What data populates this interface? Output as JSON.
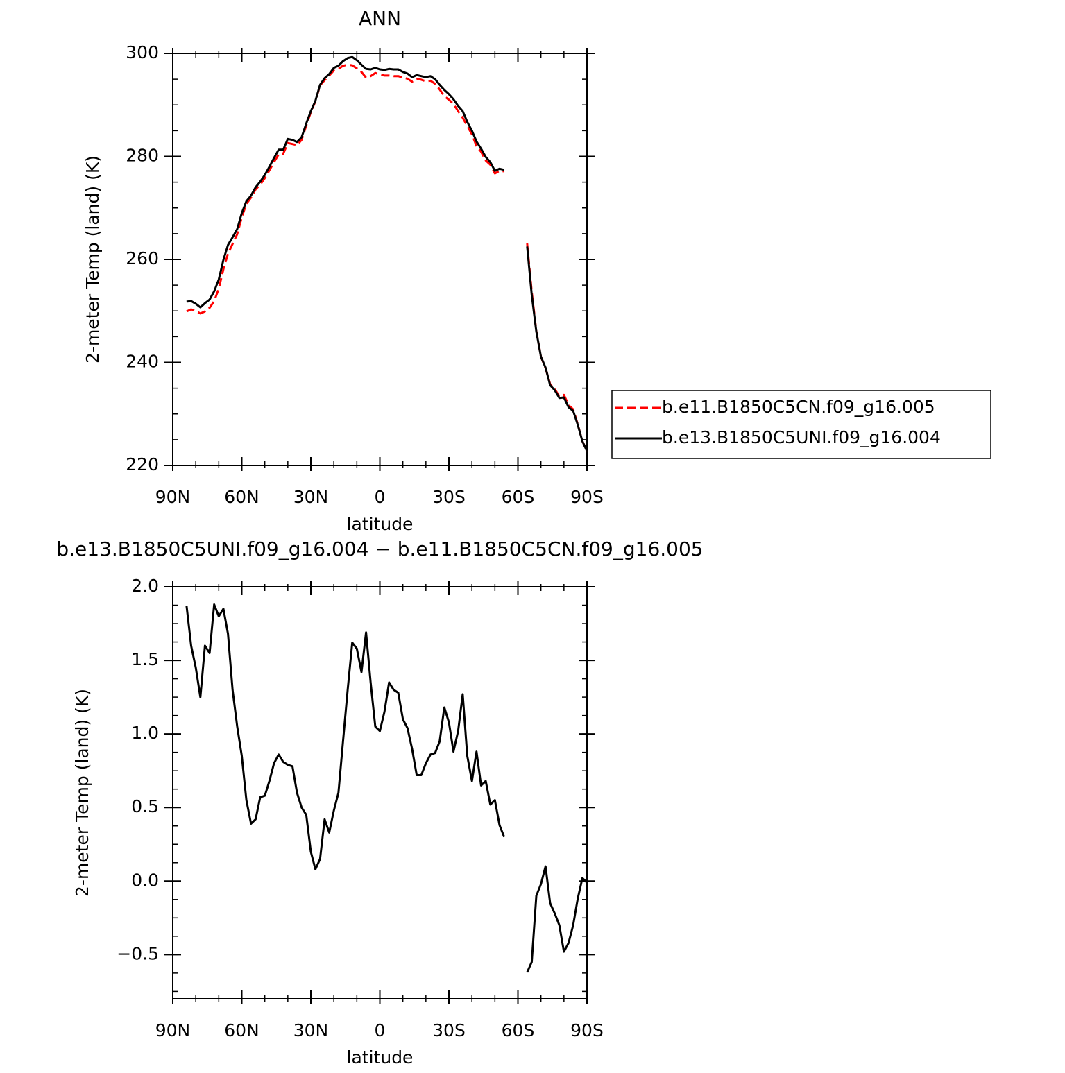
{
  "chart_data": [
    {
      "type": "line",
      "title": "ANN",
      "xlabel": "latitude",
      "ylabel": "2-meter Temp (land) (K)",
      "x": [
        84,
        82,
        80,
        78,
        76,
        74,
        72,
        70,
        68,
        66,
        64,
        62,
        60,
        58,
        56,
        54,
        52,
        50,
        48,
        46,
        44,
        42,
        40,
        38,
        36,
        34,
        32,
        30,
        28,
        26,
        24,
        22,
        20,
        18,
        16,
        14,
        12,
        10,
        8,
        6,
        4,
        2,
        0,
        -2,
        -4,
        -6,
        -8,
        -10,
        -12,
        -14,
        -16,
        -18,
        -20,
        -22,
        -24,
        -26,
        -28,
        -30,
        -32,
        -34,
        -36,
        -38,
        -40,
        -42,
        -44,
        -46,
        -48,
        -50,
        -52,
        -54,
        -58,
        -64,
        -66,
        -68,
        -70,
        -72,
        -74,
        -76,
        -78,
        -80,
        -82,
        -84,
        -86,
        -88,
        -90
      ],
      "series": [
        {
          "name": "b.e11.B1850C5CN.f09_g16.005",
          "color": "#ff0000",
          "dashed": true,
          "values": [
            249.9,
            250.3,
            250.0,
            249.5,
            249.9,
            250.6,
            251.9,
            254.3,
            258.1,
            261.1,
            263.0,
            264.9,
            268.2,
            270.8,
            272.0,
            273.6,
            274.5,
            275.8,
            277.3,
            278.9,
            280.4,
            280.5,
            282.6,
            282.4,
            282.2,
            283.2,
            286.0,
            288.6,
            290.7,
            293.8,
            294.8,
            295.7,
            296.7,
            297.0,
            297.6,
            297.8,
            297.7,
            297.1,
            296.4,
            295.3,
            295.6,
            296.2,
            295.9,
            295.7,
            295.7,
            295.6,
            295.6,
            295.3,
            295.1,
            294.5,
            295.1,
            294.9,
            294.6,
            294.7,
            294.1,
            293.0,
            291.7,
            291.0,
            290.2,
            288.8,
            287.5,
            285.9,
            284.3,
            282.0,
            280.9,
            279.2,
            278.4,
            276.7,
            277.2,
            277.1,
            null,
            263.1,
            253.7,
            246.1,
            241.1,
            238.9,
            235.8,
            234.8,
            233.4,
            233.7,
            231.7,
            230.9,
            228.0,
            224.7,
            222.8
          ]
        },
        {
          "name": "b.e13.B1850C5UNI.f09_g16.004",
          "color": "#000000",
          "dashed": false,
          "values": [
            251.8,
            251.9,
            251.4,
            250.7,
            251.5,
            252.2,
            253.8,
            256.1,
            259.9,
            262.8,
            264.3,
            265.9,
            269.0,
            271.3,
            272.4,
            274.0,
            275.1,
            276.4,
            278.0,
            279.7,
            281.3,
            281.3,
            283.4,
            283.2,
            282.8,
            283.7,
            286.4,
            288.8,
            290.8,
            293.9,
            295.2,
            296.0,
            297.2,
            297.6,
            298.5,
            299.1,
            299.3,
            298.7,
            297.8,
            297.0,
            296.9,
            297.2,
            296.9,
            296.8,
            297.0,
            296.9,
            296.9,
            296.4,
            296.1,
            295.4,
            295.8,
            295.6,
            295.4,
            295.6,
            295.0,
            293.9,
            292.9,
            292.1,
            291.1,
            289.8,
            288.8,
            286.7,
            285.0,
            282.9,
            281.5,
            279.9,
            278.9,
            277.2,
            277.6,
            277.4,
            null,
            262.5,
            253.1,
            246.0,
            241.1,
            239.0,
            235.6,
            234.6,
            233.1,
            233.2,
            231.3,
            230.6,
            227.9,
            224.7,
            222.8
          ]
        }
      ],
      "xlim": [
        90,
        -90
      ],
      "xticks": [
        {
          "value": 90,
          "label": "90N"
        },
        {
          "value": 60,
          "label": "60N"
        },
        {
          "value": 30,
          "label": "30N"
        },
        0,
        {
          "value": -30,
          "label": "30S"
        },
        {
          "value": -60,
          "label": "60S"
        },
        {
          "value": -90,
          "label": "90S"
        }
      ],
      "ylim": [
        220,
        300
      ],
      "yticks": [
        220,
        240,
        260,
        280,
        300
      ],
      "legend": "right"
    },
    {
      "type": "line",
      "title": "b.e13.B1850C5UNI.f09_g16.004 − b.e11.B1850C5CN.f09_g16.005",
      "xlabel": "latitude",
      "ylabel": "2-meter Temp (land) (K)",
      "x": [
        84,
        82,
        80,
        78,
        76,
        74,
        72,
        70,
        68,
        66,
        64,
        62,
        60,
        58,
        56,
        54,
        52,
        50,
        48,
        46,
        44,
        42,
        40,
        38,
        36,
        34,
        32,
        30,
        28,
        26,
        24,
        22,
        20,
        18,
        16,
        14,
        12,
        10,
        8,
        6,
        4,
        2,
        0,
        -2,
        -4,
        -6,
        -8,
        -10,
        -12,
        -14,
        -16,
        -18,
        -20,
        -22,
        -24,
        -26,
        -28,
        -30,
        -32,
        -34,
        -36,
        -38,
        -40,
        -42,
        -44,
        -46,
        -48,
        -50,
        -52,
        -54,
        -58,
        -64,
        -66,
        -68,
        -70,
        -72,
        -74,
        -76,
        -78,
        -80,
        -82,
        -84,
        -86,
        -88,
        -90
      ],
      "series": [
        {
          "color": "#000000",
          "dashed": false,
          "values": [
            1.87,
            1.6,
            1.45,
            1.25,
            1.6,
            1.55,
            1.88,
            1.8,
            1.85,
            1.68,
            1.3,
            1.05,
            0.85,
            0.55,
            0.39,
            0.42,
            0.57,
            0.58,
            0.68,
            0.8,
            0.86,
            0.81,
            0.79,
            0.78,
            0.6,
            0.5,
            0.45,
            0.2,
            0.08,
            0.15,
            0.42,
            0.33,
            0.48,
            0.6,
            0.95,
            1.3,
            1.62,
            1.58,
            1.42,
            1.69,
            1.35,
            1.05,
            1.02,
            1.15,
            1.35,
            1.3,
            1.28,
            1.1,
            1.04,
            0.9,
            0.72,
            0.72,
            0.8,
            0.86,
            0.87,
            0.95,
            1.18,
            1.08,
            0.88,
            1.02,
            1.27,
            0.85,
            0.68,
            0.88,
            0.65,
            0.68,
            0.52,
            0.55,
            0.38,
            0.3,
            null,
            -0.62,
            -0.55,
            -0.1,
            -0.02,
            0.1,
            -0.15,
            -0.22,
            -0.3,
            -0.48,
            -0.42,
            -0.3,
            -0.12,
            0.02,
            -0.01
          ]
        }
      ],
      "xlim": [
        90,
        -90
      ],
      "xticks": [
        {
          "value": 90,
          "label": "90N"
        },
        {
          "value": 60,
          "label": "60N"
        },
        {
          "value": 30,
          "label": "30N"
        },
        0,
        {
          "value": -30,
          "label": "30S"
        },
        {
          "value": -60,
          "label": "60S"
        },
        {
          "value": -90,
          "label": "90S"
        }
      ],
      "ylim": [
        -0.8,
        2.0
      ],
      "yticks": [
        {
          "value": -0.5,
          "label": "−0.5"
        },
        {
          "value": 0,
          "label": "0.0"
        },
        {
          "value": 0.5,
          "label": "0.5"
        },
        {
          "value": 1,
          "label": "1.0"
        },
        {
          "value": 1.5,
          "label": "1.5"
        },
        {
          "value": 2,
          "label": "2.0"
        }
      ]
    }
  ]
}
